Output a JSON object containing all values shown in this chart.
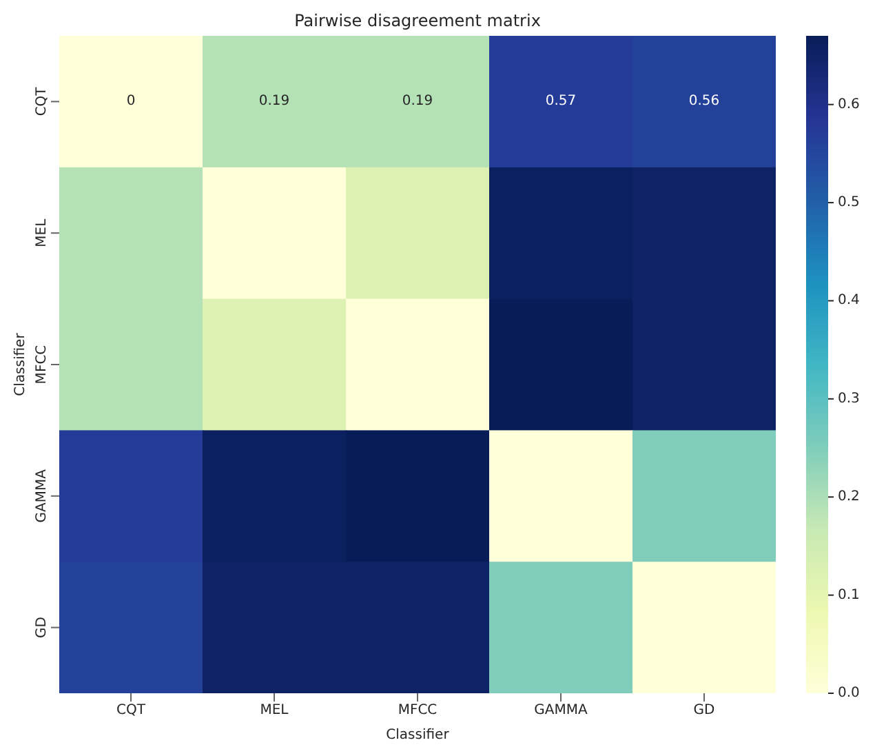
{
  "chart_data": {
    "type": "heatmap",
    "title": "Pairwise disagreement matrix",
    "xlabel": "Classifier",
    "ylabel": "Classifier",
    "categories": [
      "CQT",
      "MEL",
      "MFCC",
      "GAMMA",
      "GD"
    ],
    "y_categories": [
      "CQT",
      "MEL",
      "MFCC",
      "GAMMA",
      "GD"
    ],
    "cells": [
      [
        0,
        0.19,
        0.19,
        0.57,
        0.56
      ],
      [
        0.19,
        0,
        0.12,
        0.66,
        0.65
      ],
      [
        0.19,
        0.12,
        0,
        0.67,
        0.65
      ],
      [
        0.57,
        0.66,
        0.67,
        0,
        0.25
      ],
      [
        0.56,
        0.65,
        0.65,
        0.25,
        0
      ]
    ],
    "cell_labels": [
      [
        "0",
        "0.19",
        "0.19",
        "0.57",
        "0.56"
      ],
      [
        null,
        null,
        null,
        null,
        null
      ],
      [
        null,
        null,
        null,
        null,
        null
      ],
      [
        null,
        null,
        null,
        null,
        null
      ],
      [
        null,
        null,
        null,
        null,
        null
      ]
    ],
    "clim": [
      0,
      0.67
    ],
    "cticks": [
      {
        "value": 0,
        "label": "0.0"
      },
      0.1,
      0.2,
      0.3,
      0.4,
      0.5,
      0.6
    ]
  }
}
